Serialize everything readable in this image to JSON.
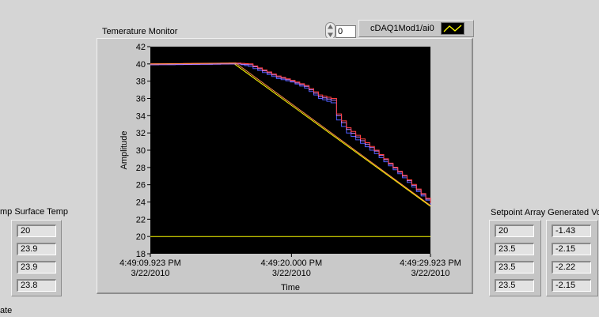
{
  "graph": {
    "title": "Temerature Monitor",
    "index": "0",
    "legend_label": "cDAQ1Mod1/ai0",
    "colors": {
      "plot_bg": "#000000",
      "yellow": "#ffff00",
      "orange": "#ff8a4a",
      "blue": "#4f5dff",
      "purple": "#c080ff",
      "red": "#ff4040"
    },
    "chart_data": {
      "type": "line",
      "xlabel": "Time",
      "ylabel": "Amplitude",
      "ylim": [
        18,
        42
      ],
      "yticks": [
        18,
        20,
        22,
        24,
        26,
        28,
        30,
        32,
        34,
        36,
        38,
        40,
        42
      ],
      "xlim": [
        0,
        20
      ],
      "xticks": [
        {
          "x": 0,
          "time": "4:49:09.923 PM",
          "date": "3/22/2010"
        },
        {
          "x": 10.077,
          "time": "4:49:20.000 PM",
          "date": "3/22/2010"
        },
        {
          "x": 20,
          "time": "4:49:29.923 PM",
          "date": "3/22/2010"
        }
      ],
      "grid": false,
      "series": [
        {
          "color": "yellow",
          "points": [
            [
              0,
              20
            ],
            [
              0.5,
              20
            ],
            [
              20,
              20
            ]
          ]
        },
        {
          "color": "yellow",
          "points": [
            [
              0,
              39.9
            ],
            [
              1.9,
              40
            ],
            [
              6,
              40
            ],
            [
              20,
              23.5
            ]
          ]
        },
        {
          "color": "blue",
          "step": true,
          "points": [
            [
              0,
              39.9
            ],
            [
              6.2,
              40
            ],
            [
              7,
              39.7
            ],
            [
              8,
              39
            ],
            [
              9,
              38.3
            ],
            [
              10,
              37.9
            ],
            [
              11,
              37.2
            ],
            [
              12,
              36
            ],
            [
              12.9,
              35.5
            ],
            [
              13.3,
              33.5
            ],
            [
              14,
              32
            ],
            [
              15,
              30.8
            ],
            [
              16,
              29.6
            ],
            [
              17,
              28.2
            ],
            [
              18,
              26.8
            ],
            [
              19,
              25.2
            ],
            [
              20,
              23.7
            ]
          ]
        },
        {
          "color": "purple",
          "step": true,
          "points": [
            [
              0,
              39.9
            ],
            [
              6.2,
              40
            ],
            [
              7,
              39.9
            ],
            [
              8,
              39.2
            ],
            [
              9,
              38.5
            ],
            [
              10,
              38
            ],
            [
              11,
              37.4
            ],
            [
              12,
              36.2
            ],
            [
              12.9,
              35.8
            ],
            [
              13.3,
              34
            ],
            [
              14,
              32.4
            ],
            [
              15,
              31.1
            ],
            [
              16,
              29.9
            ],
            [
              17,
              28.4
            ],
            [
              18,
              27
            ],
            [
              19,
              25.4
            ],
            [
              20,
              23.8
            ]
          ]
        },
        {
          "color": "red",
          "step": true,
          "points": [
            [
              0,
              40
            ],
            [
              6.2,
              40.1
            ],
            [
              7,
              40
            ],
            [
              8,
              39.3
            ],
            [
              9,
              38.6
            ],
            [
              10,
              38.1
            ],
            [
              11,
              37.5
            ],
            [
              12,
              36.4
            ],
            [
              12.9,
              36
            ],
            [
              13.3,
              34.2
            ],
            [
              14,
              32.6
            ],
            [
              15,
              31.3
            ],
            [
              16,
              30
            ],
            [
              17,
              28.5
            ],
            [
              18,
              27.1
            ],
            [
              19,
              25.5
            ],
            [
              20,
              23.9
            ]
          ]
        },
        {
          "color": "orange",
          "points": [
            [
              0,
              40
            ],
            [
              6.1,
              40.1
            ],
            [
              20,
              23.6
            ]
          ]
        }
      ]
    }
  },
  "left_panel": {
    "header": "mp Surface Temp",
    "footer": "ate",
    "values": [
      "20",
      "23.9",
      "23.9",
      "23.8"
    ]
  },
  "right_panel": {
    "header": "Setpoint Array Generated Vo",
    "setpoints": [
      "20",
      "23.5",
      "23.5",
      "23.5"
    ],
    "voltages": [
      "-1.43",
      "-2.15",
      "-2.22",
      "-2.15"
    ]
  }
}
